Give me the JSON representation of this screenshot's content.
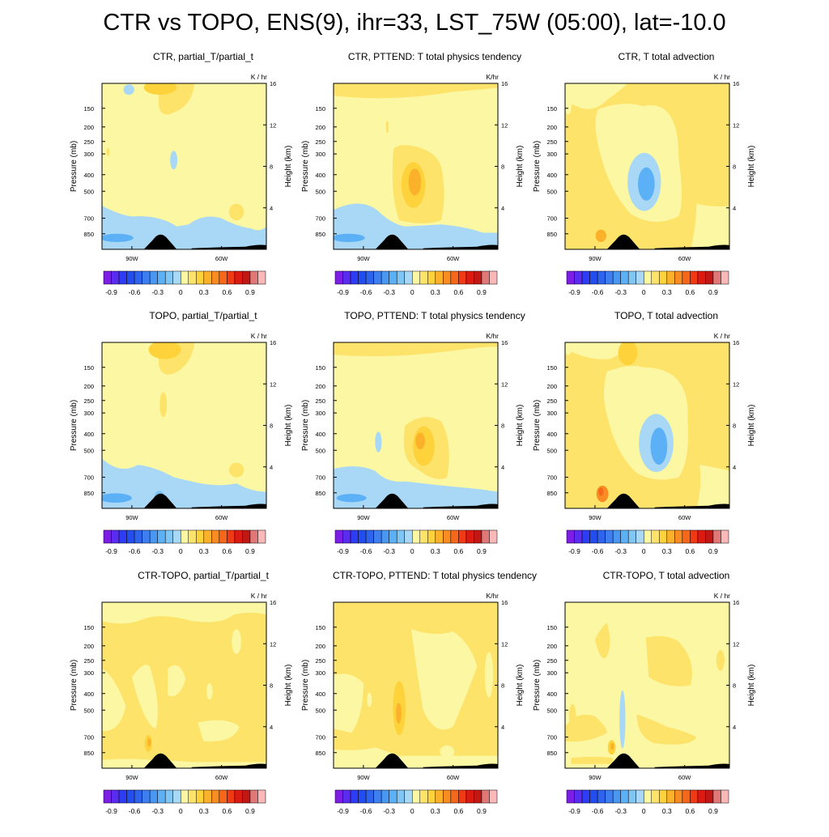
{
  "title": "CTR vs TOPO, ENS(9), ihr=33, LST_75W (05:00), lat=-10.0",
  "colorbar": {
    "colors": [
      "#7d1ee6",
      "#5a2cf0",
      "#2e3df5",
      "#244df0",
      "#2e63ee",
      "#3d7ff0",
      "#4a97f2",
      "#5cb0f5",
      "#80c6f5",
      "#a8d8f5",
      "#fbf7a3",
      "#fde36a",
      "#fdd23a",
      "#fbb22a",
      "#f98c22",
      "#f5671a",
      "#ef3a14",
      "#dd1a12",
      "#c21815",
      "#e07878",
      "#fbb8b8"
    ],
    "tick_labels": [
      "-0.9",
      "-0.6",
      "-0.3",
      "0",
      "0.3",
      "0.6",
      "0.9"
    ]
  },
  "axes": {
    "ylabel_left": "Pressure (mb)",
    "ylabel_right": "Height (km)",
    "pressure_ticks": [
      "150",
      "200",
      "250",
      "300",
      "400",
      "500",
      "700",
      "850"
    ],
    "height_ticks": [
      "4",
      "8",
      "12",
      "16"
    ],
    "x_ticks": [
      "90W",
      "60W"
    ]
  },
  "panels": [
    {
      "title": "CTR, partial_T/partial_t",
      "units": "K / hr"
    },
    {
      "title": "CTR, PTTEND: T total physics tendency",
      "units": "K/hr"
    },
    {
      "title": "CTR, T total advection",
      "units": "K / hr"
    },
    {
      "title": "TOPO, partial_T/partial_t",
      "units": "K / hr"
    },
    {
      "title": "TOPO, PTTEND: T total physics tendency",
      "units": "K/hr"
    },
    {
      "title": "TOPO, T total advection",
      "units": "K / hr"
    },
    {
      "title": "CTR-TOPO, partial_T/partial_t",
      "units": "K / hr"
    },
    {
      "title": "CTR-TOPO, PTTEND: T total physics tendency",
      "units": "K/hr"
    },
    {
      "title": "CTR-TOPO, T total advection",
      "units": "K / hr"
    }
  ],
  "chart_data": [
    {
      "type": "heatmap",
      "title": "CTR, partial_T/partial_t",
      "units": "K / hr",
      "ylabel": "Pressure (mb)",
      "ylabel_right": "Height (km)",
      "xlim": [
        "100W",
        "45W"
      ],
      "ylim_height_km": [
        0,
        16
      ],
      "features": [
        {
          "lon": -80,
          "height_km": 15.6,
          "value": 0.2
        },
        {
          "lon": -97,
          "height_km": 1.1,
          "value": -0.3
        },
        {
          "lon": -80,
          "height_km": 0.8,
          "value": -0.15
        }
      ]
    },
    {
      "type": "heatmap",
      "title": "CTR, PTTEND: T total physics tendency",
      "units": "K/hr",
      "ylabel": "Pressure (mb)",
      "ylabel_right": "Height (km)",
      "xlim": [
        "100W",
        "45W"
      ],
      "ylim_height_km": [
        0,
        16
      ],
      "features": [
        {
          "lon": -73,
          "height_km": 6.2,
          "value": 0.25
        },
        {
          "lon": -96,
          "height_km": 1.1,
          "value": -0.3
        },
        {
          "lon": -72,
          "height_km": 4.5,
          "value": -0.15
        }
      ]
    },
    {
      "type": "heatmap",
      "title": "CTR, T total advection",
      "units": "K / hr",
      "ylabel": "Pressure (mb)",
      "ylabel_right": "Height (km)",
      "xlim": [
        "100W",
        "45W"
      ],
      "ylim_height_km": [
        0,
        16
      ],
      "features": [
        {
          "lon": -73,
          "height_km": 6.3,
          "value": -0.35
        },
        {
          "lon": -88,
          "height_km": 1.3,
          "value": 0.3
        },
        {
          "lon": -95,
          "height_km": 15,
          "value": -0.1
        }
      ]
    },
    {
      "type": "heatmap",
      "title": "TOPO, partial_T/partial_t",
      "units": "K / hr",
      "ylabel": "Pressure (mb)",
      "ylabel_right": "Height (km)",
      "xlim": [
        "100W",
        "45W"
      ],
      "ylim_height_km": [
        0,
        16
      ],
      "features": [
        {
          "lon": -79,
          "height_km": 15.3,
          "value": 0.2
        },
        {
          "lon": -96,
          "height_km": 1.0,
          "value": -0.35
        },
        {
          "lon": -80,
          "height_km": 1.2,
          "value": -0.2
        }
      ]
    },
    {
      "type": "heatmap",
      "title": "TOPO, PTTEND: T total physics tendency",
      "units": "K/hr",
      "ylabel": "Pressure (mb)",
      "ylabel_right": "Height (km)",
      "xlim": [
        "100W",
        "45W"
      ],
      "ylim_height_km": [
        0,
        16
      ],
      "features": [
        {
          "lon": -70,
          "height_km": 6.0,
          "value": 0.25
        },
        {
          "lon": -94,
          "height_km": 1.0,
          "value": -0.35
        },
        {
          "lon": -85,
          "height_km": 4.5,
          "value": -0.15
        }
      ]
    },
    {
      "type": "heatmap",
      "title": "TOPO, T total advection",
      "units": "K / hr",
      "ylabel": "Pressure (mb)",
      "ylabel_right": "Height (km)",
      "xlim": [
        "100W",
        "45W"
      ],
      "ylim_height_km": [
        0,
        16
      ],
      "features": [
        {
          "lon": -69,
          "height_km": 6.3,
          "value": -0.3
        },
        {
          "lon": -88,
          "height_km": 1.4,
          "value": 0.45
        },
        {
          "lon": -79,
          "height_km": 15,
          "value": 0.15
        }
      ]
    },
    {
      "type": "heatmap",
      "title": "CTR-TOPO, partial_T/partial_t",
      "units": "K / hr",
      "ylabel": "Pressure (mb)",
      "ylabel_right": "Height (km)",
      "xlim": [
        "100W",
        "45W"
      ],
      "ylim_height_km": [
        0,
        16
      ],
      "features": [
        {
          "lon": -84,
          "height_km": 2.4,
          "value": 0.25
        },
        {
          "lon": -70,
          "height_km": 10,
          "value": 0.05
        },
        {
          "lon": -92,
          "height_km": 5,
          "value": -0.05
        }
      ]
    },
    {
      "type": "heatmap",
      "title": "CTR-TOPO, PTTEND: T total physics tendency",
      "units": "K/hr",
      "ylabel": "Pressure (mb)",
      "ylabel_right": "Height (km)",
      "xlim": [
        "100W",
        "45W"
      ],
      "ylim_height_km": [
        0,
        16
      ],
      "features": [
        {
          "lon": -78,
          "height_km": 5.8,
          "value": 0.2
        },
        {
          "lon": -95,
          "height_km": 8,
          "value": -0.05
        },
        {
          "lon": -66,
          "height_km": 8,
          "value": -0.05
        }
      ]
    },
    {
      "type": "heatmap",
      "title": "CTR-TOPO, T total advection",
      "units": "K / hr",
      "ylabel": "Pressure (mb)",
      "ylabel_right": "Height (km)",
      "xlim": [
        "100W",
        "45W"
      ],
      "ylim_height_km": [
        0,
        16
      ],
      "features": [
        {
          "lon": -80,
          "height_km": 5.0,
          "value": -0.2
        },
        {
          "lon": -84,
          "height_km": 2.1,
          "value": 0.3
        },
        {
          "lon": -70,
          "height_km": 8,
          "value": -0.05
        }
      ]
    }
  ]
}
